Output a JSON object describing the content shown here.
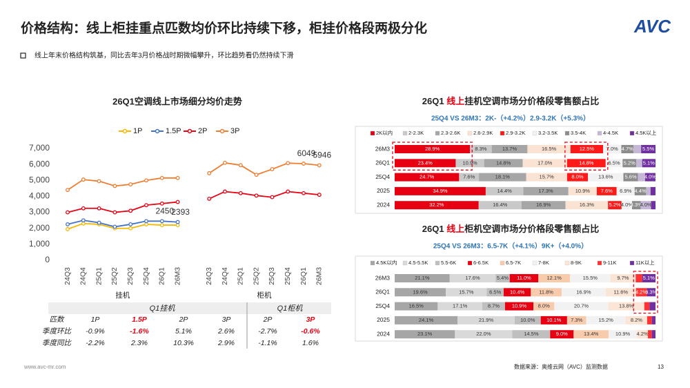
{
  "header": {
    "title": "价格结构：线上柜挂重点匹数均价环比持续下移，柜挂价格段两极分化",
    "logo": "AVC",
    "bullet": "线上年末价格结构筑基，同比去年3月价格战时期微幅攀升，环比趋势看仍然持续下滑"
  },
  "footer": {
    "url": "www.avc-mr.com",
    "source": "数据来源：奥维云网（AVC）监测数据",
    "page": "13"
  },
  "table": {
    "header": [
      "Q1挂机",
      "Q1柜机"
    ],
    "rows": [
      [
        "匹数",
        "1P",
        "1.5P",
        "2P",
        "3P",
        "2P",
        "3P"
      ],
      [
        "季度环比",
        "-0.9%",
        "-1.6%",
        "5.1%",
        "2.6%",
        "-2.7%",
        "-0.6%"
      ],
      [
        "季度同比",
        "-2.2%",
        "2.3%",
        "10.3%",
        "2.9%",
        "-1.1%",
        "1.6%"
      ]
    ],
    "highlight_cells": [
      [
        0,
        2
      ],
      [
        0,
        6
      ],
      [
        1,
        2
      ],
      [
        1,
        6
      ]
    ],
    "highlight_color": "#e60012"
  },
  "chart_data": [
    {
      "type": "line",
      "title": "26Q1空调线上市场细分均价走势",
      "categories": [
        "24Q3",
        "24Q4",
        "25Q1",
        "25Q2",
        "25Q3",
        "25Q4",
        "26Q1",
        "26M3",
        null,
        "24Q3",
        "24Q4",
        "25Q1",
        "25Q2",
        "25Q3",
        "25Q4",
        "26Q1",
        "26M3"
      ],
      "group_labels": [
        "挂机",
        "柜机"
      ],
      "ylim": [
        0,
        7000
      ],
      "yticks": [
        0,
        {
          "value": 1000,
          "label": "1,000"
        },
        {
          "value": 2000,
          "label": "2,000"
        },
        {
          "value": 3000,
          "label": "3,000"
        },
        {
          "value": 4000,
          "label": "4,000"
        },
        {
          "value": 5000,
          "label": "5,000"
        },
        {
          "value": 6000,
          "label": "6,000"
        },
        {
          "value": 7000,
          "label": "7,000"
        }
      ],
      "grid": false,
      "series": [
        {
          "name": "1P",
          "color": "#f5b800",
          "values": [
            1950,
            2300,
            2250,
            2000,
            2000,
            2250,
            2200,
            2200,
            null,
            null,
            null,
            null,
            null,
            null,
            null,
            null,
            null
          ],
          "labeled": []
        },
        {
          "name": "1.5P",
          "color": "#4472c4",
          "values": [
            2250,
            2500,
            2350,
            2100,
            2250,
            2450,
            2450,
            2393,
            null,
            null,
            null,
            null,
            null,
            null,
            null,
            null,
            null
          ],
          "labeled": [
            6,
            7
          ]
        },
        {
          "name": "2P",
          "color": "#e60012",
          "values": [
            3000,
            3250,
            3250,
            3000,
            3100,
            3450,
            3550,
            3650,
            null,
            3850,
            4300,
            4200,
            4050,
            3950,
            4300,
            4200,
            4100
          ],
          "labeled": []
        },
        {
          "name": "3P",
          "color": "#ed7d31",
          "values": [
            4400,
            5050,
            4950,
            4650,
            4750,
            5000,
            5150,
            5150,
            null,
            5450,
            6100,
            5950,
            5350,
            5700,
            6080,
            6049,
            5946
          ],
          "labeled": [
            15,
            16
          ]
        }
      ]
    },
    {
      "type": "stacked_bar_h",
      "title": {
        "before": "26Q1 ",
        "highlight": "线上",
        "after": "挂机空调市场分价格段零售额占比"
      },
      "subtitle": "25Q4 VS 26M3：2K-（+4.2%）2.9-3.2K（+5.3%）",
      "categories": [
        "26M3",
        "26Q1",
        "25Q4",
        "2025",
        "2024"
      ],
      "series": [
        {
          "name": "2K以内",
          "color": "#e60012",
          "values": [
            28.9,
            23.4,
            24.7,
            34.9,
            32.2
          ],
          "value_labels": [
            "28.9%",
            "23.4%",
            "24.7%",
            "34.9%",
            "32.2%"
          ]
        },
        {
          "name": "2-2.3K",
          "color": "#c9c9c9",
          "values": [
            8.3,
            10.9,
            7.6,
            14.4,
            16.4
          ],
          "value_labels": [
            "8.3%",
            "10.9%",
            "7.6%",
            "14.4%",
            "16.4%"
          ]
        },
        {
          "name": "2.3-2.6K",
          "color": "#a6a6a6",
          "values": [
            13.7,
            14.8,
            18.1,
            17.3,
            16.9
          ],
          "value_labels": [
            "13.7%",
            "14.8%",
            "18.1%",
            "17.3%",
            "16.9%"
          ]
        },
        {
          "name": "2.6-2.9K",
          "color": "#fbe3d4",
          "values": [
            16.5,
            17.0,
            15.7,
            10.9,
            16.3
          ],
          "value_labels": [
            "16.5%",
            "17.0%",
            "15.7%",
            "10.9%",
            "16.3%"
          ]
        },
        {
          "name": "2.9-3.2K",
          "color": "#ff1a1a",
          "values": [
            12.5,
            14.8,
            8.0,
            7.6,
            5.2
          ],
          "value_labels": [
            "12.5%",
            "14.8%",
            "8.0%",
            "7.6%",
            "5.2%"
          ]
        },
        {
          "name": "3.2-3.5K",
          "color": "#f2f2f2",
          "values": [
            7.0,
            6.5,
            13.6,
            6.9,
            4.0
          ],
          "value_labels": [
            "7.0%",
            "6.5%",
            "13.6%",
            "6.9%",
            "4.0%"
          ]
        },
        {
          "name": "3.5-4K",
          "color": "#8c8c8c",
          "values": [
            4.7,
            5.2,
            5.6,
            4.4,
            3.3
          ],
          "value_labels": [
            "4.7%",
            "5.2%",
            "5.6%",
            "4.4%",
            "3.3%"
          ]
        },
        {
          "name": "4-4.5K",
          "color": "#c5b8d6",
          "values": [
            2.9,
            2.3,
            2.7,
            1.7,
            4.0
          ],
          "value_labels": [
            null,
            null,
            null,
            null,
            "4.0%"
          ]
        },
        {
          "name": "4.5K以上",
          "color": "#7030a0",
          "values": [
            5.5,
            5.1,
            4.0,
            1.9,
            1.7
          ],
          "value_labels": [
            "5.5%",
            "5.1%",
            "4.0%",
            null,
            null
          ]
        }
      ]
    },
    {
      "type": "stacked_bar_h",
      "title": {
        "before": "26Q1 ",
        "highlight": "线上",
        "after": "柜机空调市场分价格段零售额占比"
      },
      "subtitle": "25Q4 VS 26M3：6.5-7K（+4.1%）9K+（+4.0%）",
      "categories": [
        "26M3",
        "26Q1",
        "25Q4",
        "2025",
        "2024"
      ],
      "series": [
        {
          "name": "4.5K以内",
          "color": "#a6a6a6",
          "values": [
            21.1,
            19.6,
            16.5,
            24.1,
            23.1
          ],
          "value_labels": [
            "21.1%",
            "19.6%",
            "16.5%",
            "24.1%",
            "23.1%"
          ]
        },
        {
          "name": "4.5-5.5K",
          "color": "#d9d9d9",
          "values": [
            17.6,
            15.7,
            17.1,
            21.9,
            22.0
          ],
          "value_labels": [
            "17.6%",
            "15.7%",
            "17.1%",
            "21.9%",
            "22.0%"
          ]
        },
        {
          "name": "5.5-6K",
          "color": "#bfbfbf",
          "values": [
            5.4,
            6.5,
            8.7,
            10.0,
            14.5
          ],
          "value_labels": [
            "5.4%",
            "6.5%",
            "8.7%",
            "10.0%",
            "14.5%"
          ]
        },
        {
          "name": "6-6.5K",
          "color": "#e60012",
          "values": [
            11.0,
            10.4,
            10.9,
            10.1,
            9.0
          ],
          "value_labels": [
            "11.0%",
            "10.4%",
            "10.9%",
            "10.1%",
            "9.0%"
          ]
        },
        {
          "name": "6.5-7K",
          "color": "#f8cbad",
          "values": [
            12.1,
            11.8,
            8.0,
            7.3,
            13.4
          ],
          "value_labels": [
            "12.1%",
            "11.8%",
            "8.0%",
            "7.3%",
            "13.4%"
          ]
        },
        {
          "name": "7-8K",
          "color": "#f2f2f2",
          "values": [
            15.5,
            16.9,
            20.7,
            15.2,
            10.9
          ],
          "value_labels": [
            "15.5%",
            "16.9%",
            "20.7%",
            "15.2%",
            "10.9%"
          ]
        },
        {
          "name": "8-9K",
          "color": "#fbe5d6",
          "values": [
            9.7,
            11.6,
            13.8,
            8.2,
            4.2
          ],
          "value_labels": [
            "9.7%",
            "11.6%",
            "13.8%",
            "8.2%",
            "4.2%"
          ]
        },
        {
          "name": "9-11K",
          "color": "#ff3333",
          "values": [
            2.5,
            4.2,
            2.0,
            1.8,
            1.5
          ],
          "value_labels": [
            null,
            "4.2%",
            null,
            null,
            null
          ]
        },
        {
          "name": "11K以上",
          "color": "#7030a0",
          "values": [
            5.1,
            3.3,
            2.3,
            1.4,
            1.4
          ],
          "value_labels": [
            "5.1%",
            "3.3%",
            null,
            null,
            null
          ]
        }
      ]
    }
  ]
}
